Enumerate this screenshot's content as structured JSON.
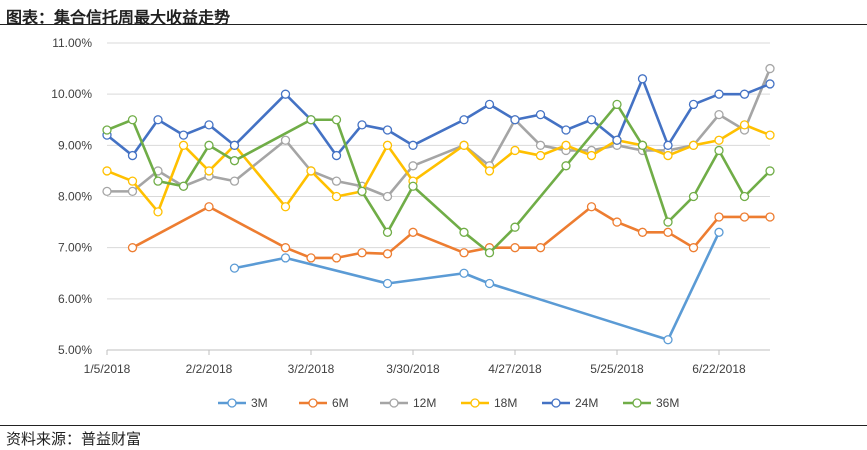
{
  "header": {
    "title": "图表：集合信托周最大收益走势"
  },
  "footer": {
    "source": "资料来源：普益财富"
  },
  "chart_data": {
    "type": "line",
    "title": "集合信托周最大收益走势",
    "xlabel": "",
    "ylabel": "",
    "x_tick_labels": [
      "1/5/2018",
      "2/2/2018",
      "3/2/2018",
      "3/30/2018",
      "4/27/2018",
      "5/25/2018",
      "6/22/2018"
    ],
    "y_tick_labels": [
      "5.00%",
      "6.00%",
      "7.00%",
      "8.00%",
      "9.00%",
      "10.00%",
      "11.00%"
    ],
    "ylim": [
      5.0,
      11.0
    ],
    "y_unit": "%",
    "x": [
      0,
      1,
      2,
      3,
      4,
      5,
      6,
      7,
      8,
      9,
      10,
      11,
      12,
      13,
      14,
      15,
      16,
      17,
      18,
      19,
      20,
      21,
      22,
      23,
      24,
      25,
      26
    ],
    "grid": "horizontal",
    "legend_position": "bottom",
    "series": [
      {
        "name": "3M",
        "color": "#5b9bd5",
        "values": [
          null,
          null,
          null,
          null,
          null,
          6.6,
          null,
          6.8,
          null,
          null,
          null,
          6.3,
          null,
          null,
          6.5,
          6.3,
          null,
          null,
          null,
          null,
          null,
          null,
          5.2,
          null,
          7.3,
          null,
          null
        ]
      },
      {
        "name": "6M",
        "color": "#ed7d31",
        "values": [
          null,
          7.0,
          null,
          null,
          7.8,
          null,
          null,
          7.0,
          6.8,
          6.8,
          6.9,
          6.88,
          7.3,
          null,
          6.9,
          7.0,
          7.0,
          7.0,
          null,
          7.8,
          7.5,
          7.3,
          7.3,
          7.0,
          7.6,
          7.6,
          7.6
        ]
      },
      {
        "name": "12M",
        "color": "#a5a5a5",
        "values": [
          8.1,
          8.1,
          8.5,
          8.2,
          8.4,
          8.3,
          null,
          9.1,
          8.5,
          8.3,
          8.2,
          8.0,
          8.6,
          null,
          9.0,
          8.6,
          9.5,
          9.0,
          8.9,
          8.9,
          9.0,
          8.9,
          8.9,
          9.0,
          9.6,
          9.3,
          10.5
        ]
      },
      {
        "name": "18M",
        "color": "#ffc000",
        "values": [
          8.5,
          8.3,
          7.7,
          9.0,
          8.5,
          9.0,
          null,
          7.8,
          8.5,
          8.0,
          8.1,
          9.0,
          8.3,
          null,
          9.0,
          8.5,
          8.9,
          8.8,
          9.0,
          8.8,
          9.1,
          9.0,
          8.8,
          9.0,
          9.1,
          9.4,
          9.2
        ]
      },
      {
        "name": "24M",
        "color": "#4472c4",
        "values": [
          9.2,
          8.8,
          9.5,
          9.2,
          9.4,
          9.0,
          null,
          10.0,
          9.5,
          8.8,
          9.4,
          9.3,
          9.0,
          null,
          9.5,
          9.8,
          9.5,
          9.6,
          9.3,
          9.5,
          9.1,
          10.3,
          9.0,
          9.8,
          10.0,
          10.0,
          10.2
        ]
      },
      {
        "name": "36M",
        "color": "#70ad47",
        "values": [
          9.3,
          9.5,
          8.3,
          8.2,
          9.0,
          8.7,
          null,
          null,
          9.5,
          9.5,
          8.1,
          7.3,
          8.2,
          null,
          7.3,
          6.9,
          7.4,
          null,
          8.6,
          null,
          9.8,
          9.0,
          7.5,
          8.0,
          8.9,
          8.0,
          8.5
        ]
      }
    ]
  }
}
